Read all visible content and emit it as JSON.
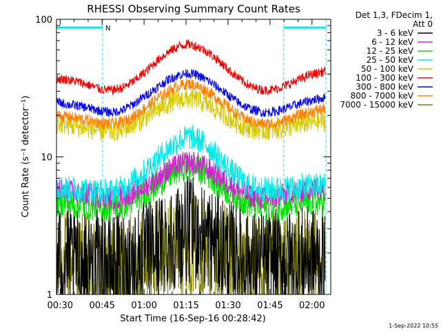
{
  "chart_data": {
    "type": "line",
    "title": "RHESSI Observing Summary Count Rates",
    "xlabel": "Start Time (16-Sep-16 00:28:42)",
    "ylabel": "Count Rate (s⁻¹ detector⁻¹)",
    "y_scale": "log",
    "ylim": [
      1,
      100
    ],
    "x_range_minutes": [
      0,
      98
    ],
    "x_ticks": [
      {
        "minute": 1.3,
        "label": "00:30"
      },
      {
        "minute": 16.3,
        "label": "00:45"
      },
      {
        "minute": 31.3,
        "label": "01:00"
      },
      {
        "minute": 46.3,
        "label": "01:15"
      },
      {
        "minute": 61.3,
        "label": "01:30"
      },
      {
        "minute": 76.3,
        "label": "01:45"
      },
      {
        "minute": 91.3,
        "label": "02:00"
      }
    ],
    "y_ticks": [
      {
        "value": 1,
        "label": "1"
      },
      {
        "value": 10,
        "label": "10"
      },
      {
        "value": 100,
        "label": "100"
      }
    ],
    "legend": {
      "header": [
        "Det 1,3, FDecim 1,",
        "Att 0"
      ],
      "placement": "right"
    },
    "flags": [
      {
        "label": "N",
        "start_minute": 0,
        "end_minute": 16.5
      },
      {
        "label": "",
        "start_minute": 81.2,
        "end_minute": 96.3
      }
    ],
    "curve_x": [
      0,
      4,
      8,
      12,
      16,
      20,
      24,
      28,
      32,
      36,
      40,
      44,
      47,
      50,
      54,
      58,
      62,
      66,
      70,
      74,
      78,
      82,
      86,
      90,
      94,
      96
    ],
    "series": [
      {
        "name": "3 - 6 keV",
        "color": "#000000",
        "values": [
          1.8,
          1.8,
          1.7,
          1.7,
          1.7,
          1.6,
          1.7,
          1.8,
          2.0,
          2.2,
          2.5,
          2.8,
          3.0,
          2.9,
          2.6,
          2.3,
          2.0,
          1.8,
          1.7,
          1.7,
          1.7,
          1.7,
          1.8,
          1.8,
          1.8,
          1.8
        ]
      },
      {
        "name": "6 - 12 keV",
        "color": "#d020d0",
        "values": [
          5.8,
          5.6,
          5.4,
          5.3,
          5.1,
          5.0,
          5.2,
          5.6,
          6.2,
          7.0,
          8.0,
          8.8,
          9.2,
          9.0,
          8.2,
          7.2,
          6.3,
          5.6,
          5.2,
          5.0,
          5.1,
          5.4,
          5.6,
          5.8,
          5.9,
          5.9
        ]
      },
      {
        "name": "12 - 25 keV",
        "color": "#00e000",
        "values": [
          4.7,
          4.6,
          4.5,
          4.4,
          4.3,
          4.3,
          4.5,
          4.9,
          5.5,
          6.3,
          7.3,
          8.1,
          8.5,
          8.3,
          7.5,
          6.4,
          5.5,
          4.9,
          4.5,
          4.3,
          4.3,
          4.5,
          4.6,
          4.7,
          4.7,
          4.7
        ]
      },
      {
        "name": "25 - 50 keV",
        "color": "#00e8e8",
        "values": [
          6.0,
          5.9,
          5.8,
          5.7,
          5.6,
          5.6,
          6.0,
          6.8,
          8.0,
          9.6,
          11.5,
          13.2,
          14.0,
          13.5,
          12.0,
          9.8,
          8.0,
          6.8,
          6.0,
          5.8,
          5.8,
          5.9,
          6.0,
          6.1,
          6.2,
          6.2
        ]
      },
      {
        "name": "50 - 100 keV",
        "color": "#d8c800",
        "values": [
          17.5,
          17.0,
          16.5,
          16.0,
          15.5,
          15.3,
          16.0,
          17.5,
          19.5,
          22.0,
          24.5,
          26.0,
          26.5,
          26.0,
          24.0,
          21.5,
          19.0,
          17.0,
          16.0,
          15.5,
          15.8,
          16.3,
          17.0,
          17.8,
          18.2,
          18.4
        ]
      },
      {
        "name": "100 - 300 keV",
        "color": "#f00000",
        "values": [
          37.0,
          36.5,
          35.0,
          33.0,
          31.0,
          30.5,
          32.0,
          36.0,
          42.0,
          50.0,
          58.0,
          64.0,
          66.0,
          64.0,
          58.0,
          50.0,
          42.0,
          36.0,
          32.0,
          30.5,
          31.0,
          33.0,
          36.0,
          39.0,
          41.0,
          42.0
        ]
      },
      {
        "name": "300 - 800 keV",
        "color": "#0000f0",
        "values": [
          25.0,
          24.0,
          23.5,
          22.5,
          21.5,
          21.0,
          22.0,
          24.5,
          28.0,
          32.0,
          36.5,
          39.5,
          40.5,
          39.5,
          36.0,
          31.5,
          27.5,
          24.0,
          22.0,
          21.0,
          21.3,
          22.5,
          24.0,
          25.5,
          26.5,
          27.0
        ]
      },
      {
        "name": "800 - 7000 keV",
        "color": "#ff8000",
        "values": [
          20.0,
          19.5,
          19.0,
          18.3,
          17.5,
          17.3,
          18.0,
          20.0,
          23.0,
          26.5,
          30.0,
          33.0,
          34.0,
          33.0,
          30.0,
          26.0,
          22.5,
          19.5,
          18.0,
          17.3,
          17.5,
          18.5,
          19.8,
          21.0,
          22.0,
          22.5
        ]
      },
      {
        "name": "7000 - 15000 keV",
        "color": "#808000",
        "values": [
          1.7,
          1.7,
          1.6,
          1.6,
          1.6,
          1.5,
          1.6,
          1.7,
          1.8,
          2.0,
          2.1,
          2.3,
          2.4,
          2.3,
          2.1,
          1.9,
          1.8,
          1.7,
          1.6,
          1.6,
          1.6,
          1.6,
          1.7,
          1.7,
          1.7,
          1.7
        ]
      }
    ]
  },
  "footer": {
    "timestamp": "1-Sep-2022 10:55"
  }
}
